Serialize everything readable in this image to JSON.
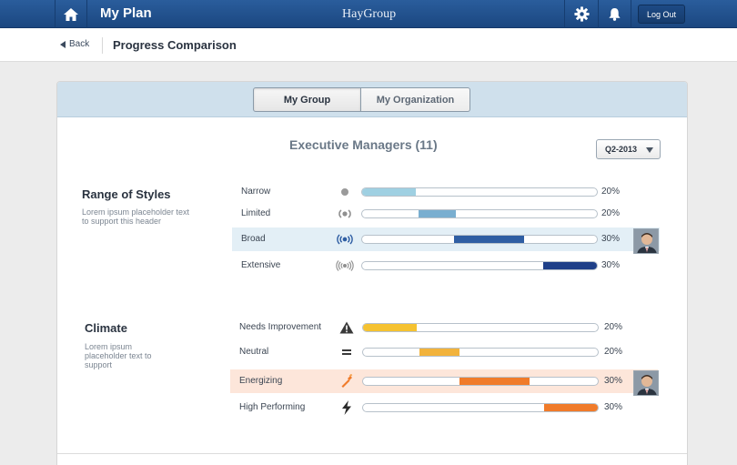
{
  "header": {
    "title": "My Plan",
    "brand": "HayGroup",
    "logout_label": "Log Out",
    "icons": [
      "home-icon",
      "gear-icon",
      "bell-icon"
    ]
  },
  "subheader": {
    "back_label": "Back",
    "page_title": "Progress Comparison"
  },
  "tabs": {
    "my_group": "My Group",
    "my_organization": "My Organization",
    "selected": "My Group"
  },
  "group": {
    "title": "Executive Managers (11)",
    "quarter": "Q2-2013"
  },
  "colors": {
    "styles_bar": [
      "#9fd0e2",
      "#79aed0",
      "#2f5ea3",
      "#1e3f88"
    ],
    "climate_bar": [
      "#f5c231",
      "#f2b33c",
      "#f07b2a",
      "#f07b2a"
    ],
    "highlight_blue": "#e3eff6",
    "highlight_orange": "#fde6da"
  },
  "range_of_styles": {
    "title": "Range of Styles",
    "description": "Lorem ipsum placeholder text to support this header",
    "rows": [
      {
        "label": "Narrow",
        "percent": "20%",
        "start": 0.0,
        "end": 0.23,
        "icon": "dot-icon",
        "highlight": false
      },
      {
        "label": "Limited",
        "percent": "20%",
        "start": 0.24,
        "end": 0.4,
        "icon": "signal-small-icon",
        "highlight": false
      },
      {
        "label": "Broad",
        "percent": "30%",
        "start": 0.39,
        "end": 0.69,
        "icon": "signal-medium-icon",
        "highlight": true
      },
      {
        "label": "Extensive",
        "percent": "30%",
        "start": 0.77,
        "end": 1.0,
        "icon": "signal-large-icon",
        "highlight": false
      }
    ]
  },
  "climate": {
    "title": "Climate",
    "description": "Lorem ipsum placeholder text to support",
    "rows": [
      {
        "label": "Needs Improvement",
        "percent": "20%",
        "start": 0.0,
        "end": 0.23,
        "icon": "warning-icon",
        "highlight": false
      },
      {
        "label": "Neutral",
        "percent": "20%",
        "start": 0.24,
        "end": 0.41,
        "icon": "equals-icon",
        "highlight": false
      },
      {
        "label": "Energizing",
        "percent": "30%",
        "start": 0.41,
        "end": 0.71,
        "icon": "fuel-icon",
        "highlight": true
      },
      {
        "label": "High Performing",
        "percent": "30%",
        "start": 0.77,
        "end": 1.0,
        "icon": "lightning-icon",
        "highlight": false
      }
    ]
  }
}
